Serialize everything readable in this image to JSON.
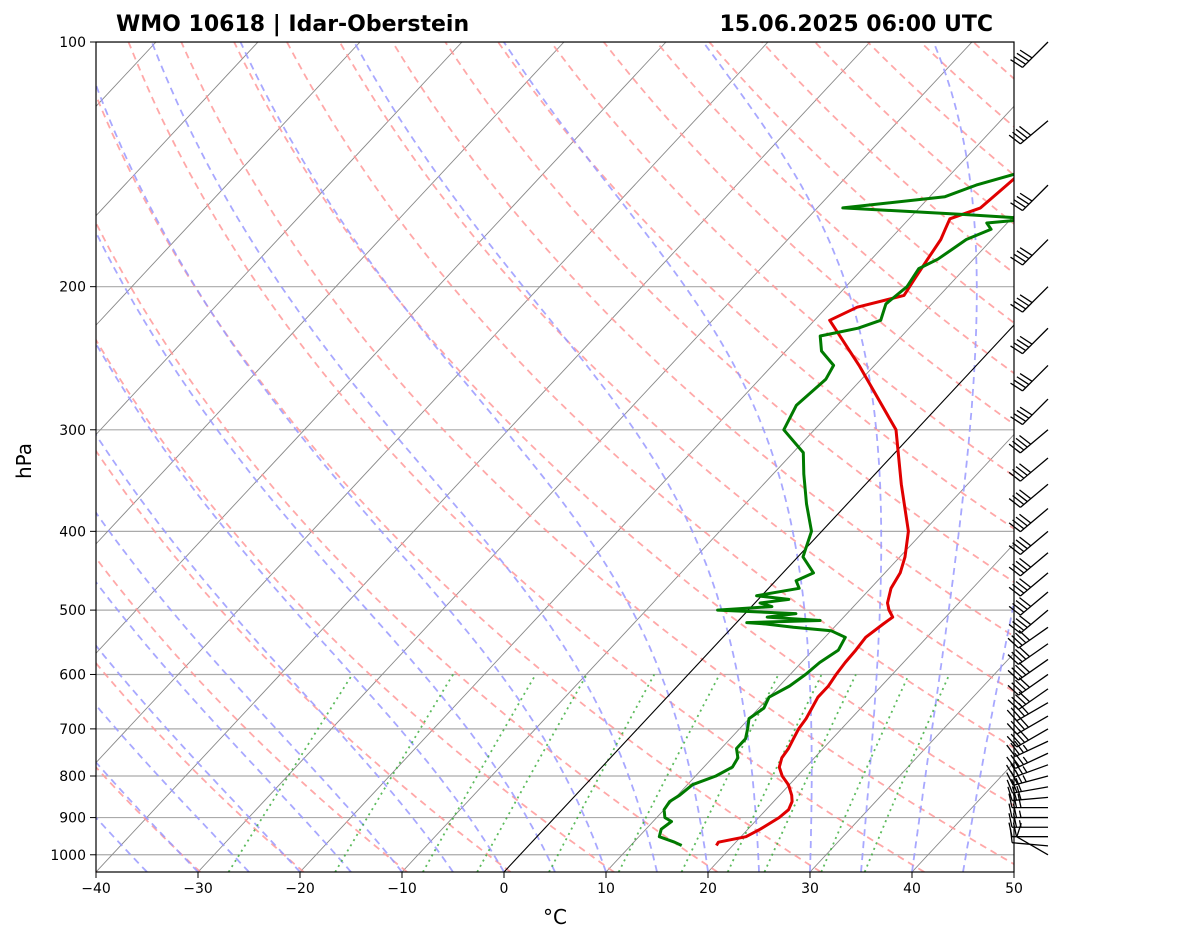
{
  "chart_data": {
    "type": "skew-t log-p sounding",
    "title_left": "WMO 10618 | Idar-Oberstein",
    "title_right": "15.06.2025 06:00 UTC",
    "xlabel": "°C",
    "ylabel": "hPa",
    "xlim": [
      -40,
      50
    ],
    "ylim": [
      1050,
      100
    ],
    "y_scale": "log",
    "x_ticks": [
      -40,
      -30,
      -20,
      -10,
      0,
      10,
      20,
      30,
      40,
      50
    ],
    "x_tick_labels": [
      "−40",
      "−30",
      "−20",
      "−10",
      "0",
      "10",
      "20",
      "30",
      "40",
      "50"
    ],
    "y_ticks": [
      100,
      200,
      300,
      400,
      500,
      600,
      700,
      800,
      900,
      1000
    ],
    "y_tick_labels": [
      "100",
      "200",
      "300",
      "400",
      "500",
      "600",
      "700",
      "800",
      "900",
      "1000"
    ],
    "grid": true,
    "colors": {
      "temperature": "#e00000",
      "dewpoint": "#007a00",
      "dry_adiabat": "#ff9999",
      "moist_adiabat": "#9999ff",
      "mixing_ratio": "#33aa33",
      "isotherm": "#888888",
      "zero_isotherm": "#000000",
      "isobar": "#aaaaaa"
    },
    "temperature": {
      "pressure": [
        974,
        965,
        950,
        930,
        900,
        880,
        860,
        845,
        820,
        800,
        780,
        760,
        740,
        720,
        700,
        680,
        660,
        640,
        620,
        600,
        580,
        560,
        540,
        520,
        510,
        500,
        490,
        470,
        450,
        430,
        400,
        350,
        300,
        250,
        220,
        212,
        205,
        195,
        185,
        175,
        170,
        165,
        160,
        150,
        140,
        130,
        120,
        110,
        105,
        100
      ],
      "value": [
        18.4,
        18.3,
        20.5,
        21.2,
        22.0,
        22.2,
        21.8,
        21.2,
        19.9,
        18.5,
        17.4,
        16.8,
        16.6,
        16.2,
        15.8,
        15.6,
        15.2,
        14.8,
        14.8,
        14.5,
        14.3,
        14.2,
        14.0,
        14.5,
        14.8,
        13.8,
        13.0,
        12.0,
        11.5,
        10.5,
        8.5,
        3.5,
        -2.0,
        -11.5,
        -18.5,
        -17.0,
        -13.5,
        -14.0,
        -14.5,
        -15.0,
        -15.5,
        -16.0,
        -14.0,
        -13.5,
        -13.0,
        -12.0,
        -11.5,
        -10.5,
        -9.5,
        -8.0
      ]
    },
    "dewpoint": {
      "pressure": [
        974,
        965,
        950,
        930,
        910,
        900,
        880,
        860,
        845,
        820,
        800,
        780,
        760,
        740,
        720,
        700,
        680,
        660,
        640,
        620,
        600,
        580,
        560,
        540,
        530,
        525,
        520,
        518,
        515,
        510,
        505,
        500,
        495,
        490,
        485,
        480,
        470,
        460,
        450,
        430,
        400,
        370,
        340,
        320,
        300,
        280,
        260,
        250,
        240,
        230,
        225,
        220,
        210,
        200,
        190,
        185,
        180,
        175,
        170,
        167,
        165,
        163,
        160,
        155,
        150,
        145,
        140,
        135,
        130,
        125,
        120,
        110,
        105,
        100
      ],
      "value": [
        15.0,
        14.0,
        12.0,
        11.5,
        11.8,
        10.8,
        10.0,
        9.8,
        10.2,
        10.5,
        12.0,
        12.8,
        12.5,
        11.5,
        11.5,
        10.8,
        10.0,
        10.5,
        10.0,
        11.0,
        11.5,
        11.8,
        12.5,
        12.0,
        10.0,
        6.0,
        3.0,
        1.0,
        8.0,
        2.5,
        5.0,
        -3.0,
        2.0,
        0.5,
        3.0,
        -0.5,
        3.0,
        2.0,
        3.0,
        0.5,
        -1.0,
        -4.0,
        -7.0,
        -9.0,
        -13.0,
        -14.0,
        -13.5,
        -14.0,
        -16.5,
        -18.0,
        -15.0,
        -13.5,
        -14.5,
        -14.0,
        -14.5,
        -13.5,
        -13.0,
        -12.5,
        -11.0,
        -12.0,
        -8.0,
        -15.0,
        -27.5,
        -18.5,
        -16.5,
        -13.5,
        -13.5,
        -14.5,
        -13.0,
        -11.5,
        -11.0,
        -9.5,
        -8.5,
        -7.0
      ]
    },
    "wind_barbs": {
      "pressure": [
        1000,
        975,
        950,
        925,
        900,
        875,
        850,
        825,
        800,
        775,
        750,
        725,
        700,
        675,
        650,
        625,
        600,
        575,
        550,
        525,
        500,
        475,
        450,
        425,
        400,
        375,
        350,
        325,
        300,
        275,
        250,
        225,
        200,
        175,
        150,
        125,
        100
      ],
      "direction_deg": [
        300,
        275,
        270,
        270,
        270,
        270,
        265,
        260,
        255,
        250,
        245,
        245,
        240,
        240,
        240,
        235,
        235,
        235,
        235,
        235,
        230,
        230,
        230,
        230,
        230,
        230,
        230,
        230,
        230,
        225,
        225,
        225,
        225,
        225,
        225,
        230,
        225
      ],
      "speed_kt": [
        10,
        10,
        20,
        25,
        25,
        30,
        30,
        30,
        35,
        35,
        35,
        35,
        40,
        40,
        40,
        40,
        40,
        40,
        40,
        40,
        40,
        40,
        40,
        40,
        40,
        40,
        40,
        40,
        40,
        40,
        40,
        40,
        40,
        40,
        40,
        40,
        40
      ]
    }
  }
}
